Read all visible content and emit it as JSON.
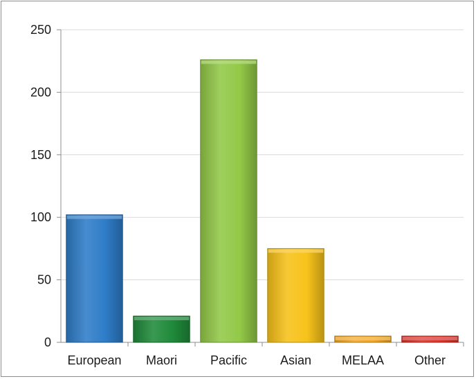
{
  "chart_data": {
    "type": "bar",
    "title": "",
    "xlabel": "",
    "ylabel": "",
    "categories": [
      "European",
      "Maori",
      "Pacific",
      "Asian",
      "MELAA",
      "Other"
    ],
    "values": [
      102,
      21,
      226,
      75,
      5,
      5
    ],
    "colors": [
      "#2e7cc8",
      "#1f8a3a",
      "#92c947",
      "#f7c21a",
      "#f2a725",
      "#d9342b"
    ],
    "ylim": [
      0,
      250
    ],
    "yticks": [
      0,
      50,
      100,
      150,
      200,
      250
    ],
    "grid": true,
    "legend": "none"
  }
}
